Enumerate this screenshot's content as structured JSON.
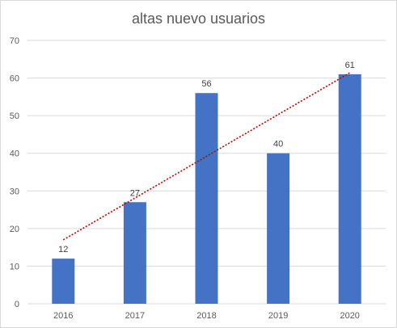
{
  "chart_data": {
    "type": "bar",
    "title": "altas nuevo usuarios",
    "xlabel": "",
    "ylabel": "",
    "categories": [
      "2016",
      "2017",
      "2018",
      "2019",
      "2020"
    ],
    "values": [
      12,
      27,
      56,
      40,
      61
    ],
    "data_labels": [
      "12",
      "27",
      "56",
      "40",
      "61"
    ],
    "ylim": [
      0,
      70
    ],
    "yticks": [
      "0",
      "10",
      "20",
      "30",
      "40",
      "50",
      "60",
      "70"
    ],
    "grid": true,
    "legend": "none",
    "trendline": {
      "type": "linear",
      "style": "dotted",
      "color": "#c00000"
    },
    "colors": {
      "bar": "#4472c4",
      "gridline": "#d9d9d9",
      "trendline": "#c00000"
    }
  }
}
